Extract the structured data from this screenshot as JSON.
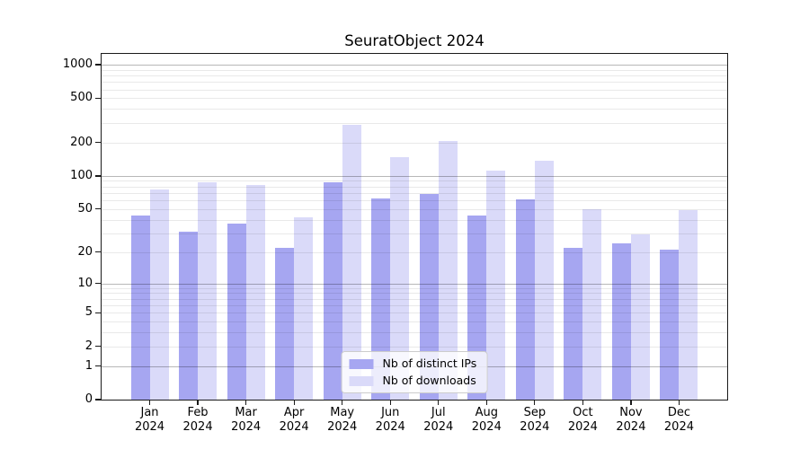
{
  "title": "SeuratObject 2024",
  "colors": {
    "ips_bar": "#a6a6f1",
    "downloads_bar": "#dadaf9",
    "spine": "#1a1a1a",
    "grid_major": "rgba(0,0,0,0.28)",
    "grid_minor": "rgba(0,0,0,0.085)",
    "legend_border": "#cccccc",
    "legend_bg": "rgba(255,255,255,0.8)",
    "text": "#000000"
  },
  "chart_data": {
    "type": "bar",
    "title": "SeuratObject 2024",
    "categories": [
      "Jan",
      "Feb",
      "Mar",
      "Apr",
      "May",
      "Jun",
      "Jul",
      "Aug",
      "Sep",
      "Oct",
      "Nov",
      "Dec"
    ],
    "year": "2024",
    "series": [
      {
        "name": "Nb of distinct IPs",
        "values": [
          44,
          31,
          37,
          22,
          88,
          63,
          69,
          44,
          61,
          22,
          24,
          21
        ]
      },
      {
        "name": "Nb of downloads",
        "values": [
          76,
          87,
          83,
          42,
          291,
          148,
          206,
          112,
          138,
          50,
          29,
          49
        ]
      }
    ],
    "xlabel": "",
    "ylabel": "",
    "y_ticks": [
      0,
      1,
      2,
      5,
      10,
      20,
      50,
      100,
      200,
      500,
      1000
    ],
    "y_scale": "log1p",
    "ylim": [
      0,
      1250
    ],
    "grid": true,
    "legend_position": "lower center"
  }
}
